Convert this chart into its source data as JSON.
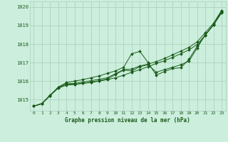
{
  "title": "Graphe pression niveau de la mer (hPa)",
  "background_color": "#cceedd",
  "plot_bg_color": "#cceedd",
  "grid_color": "#aaccbb",
  "line_color": "#1a5c1a",
  "marker_color": "#1a5c1a",
  "xlim": [
    -0.5,
    23.5
  ],
  "ylim": [
    1014.4,
    1020.3
  ],
  "yticks": [
    1015,
    1016,
    1017,
    1018,
    1019,
    1020
  ],
  "xticks": [
    0,
    1,
    2,
    3,
    4,
    5,
    6,
    7,
    8,
    9,
    10,
    11,
    12,
    13,
    14,
    15,
    16,
    17,
    18,
    19,
    20,
    21,
    22,
    23
  ],
  "series": [
    [
      1014.65,
      1014.8,
      1015.25,
      1015.65,
      1015.85,
      1015.82,
      1015.88,
      1015.92,
      1016.0,
      1016.08,
      1016.18,
      1016.32,
      1016.48,
      1016.62,
      1016.78,
      1016.95,
      1017.1,
      1017.28,
      1017.48,
      1017.68,
      1017.98,
      1018.48,
      1019.05,
      1019.78
    ],
    [
      1014.65,
      1014.78,
      1015.22,
      1015.62,
      1015.78,
      1015.82,
      1015.88,
      1015.95,
      1016.02,
      1016.12,
      1016.35,
      1016.6,
      1016.55,
      1016.78,
      1016.88,
      1016.48,
      1016.62,
      1016.75,
      1016.88,
      1017.08,
      1017.78,
      1018.5,
      1019.05,
      1019.72
    ],
    [
      1014.65,
      1014.78,
      1015.22,
      1015.68,
      1015.92,
      1016.0,
      1016.08,
      1016.18,
      1016.28,
      1016.42,
      1016.55,
      1016.75,
      1017.48,
      1017.6,
      1017.0,
      1016.32,
      1016.52,
      1016.68,
      1016.72,
      1017.18,
      1017.88,
      1018.48,
      1019.02,
      1019.68
    ],
    [
      1014.65,
      1014.78,
      1015.22,
      1015.65,
      1015.85,
      1015.88,
      1015.95,
      1016.02,
      1016.1,
      1016.18,
      1016.4,
      1016.62,
      1016.65,
      1016.82,
      1016.92,
      1017.05,
      1017.22,
      1017.42,
      1017.62,
      1017.82,
      1018.12,
      1018.62,
      1019.12,
      1019.82
    ]
  ]
}
